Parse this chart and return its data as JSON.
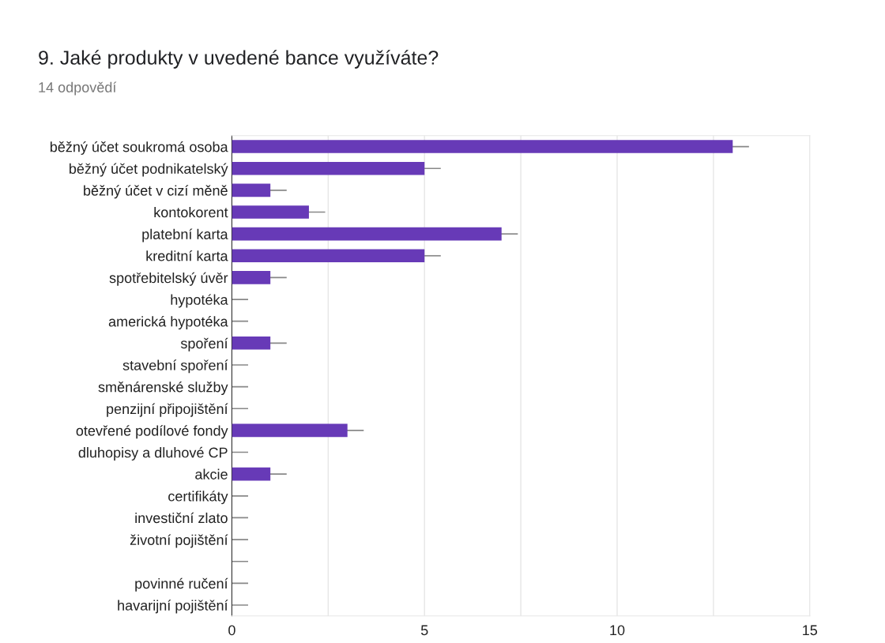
{
  "chart_data": {
    "type": "bar",
    "orientation": "horizontal",
    "title": "9. Jaké produkty v uvedené bance využíváte?",
    "subtitle": "14 odpovědí",
    "categories": [
      "běžný účet soukromá osoba",
      "běžný účet podnikatelský",
      "běžný účet v cizí měně",
      "kontokorent",
      "platební karta",
      "kreditní karta",
      "spotřebitelský úvěr",
      "hypotéka",
      "americká hypotéka",
      "spoření",
      "stavební spoření",
      "směnárenské služby",
      "penzijní připojištění",
      "otevřené podílové fondy",
      "dluhopisy a dluhové CP",
      "akcie",
      "certifikáty",
      "investiční zlato",
      "životní pojištění",
      null,
      "povinné ručení",
      "havarijní pojištění"
    ],
    "values": [
      13,
      5,
      1,
      2,
      7,
      5,
      1,
      0,
      0,
      1,
      0,
      0,
      0,
      3,
      0,
      1,
      0,
      0,
      0,
      0,
      0,
      0
    ],
    "color": "#673ab7",
    "xlim": [
      0,
      15
    ],
    "xticks": [
      0,
      {
        "value": 2.5,
        "label": null
      },
      5,
      {
        "value": 7.5,
        "label": null
      },
      10,
      {
        "value": 12.5,
        "label": null
      },
      15
    ],
    "grid": "x"
  }
}
